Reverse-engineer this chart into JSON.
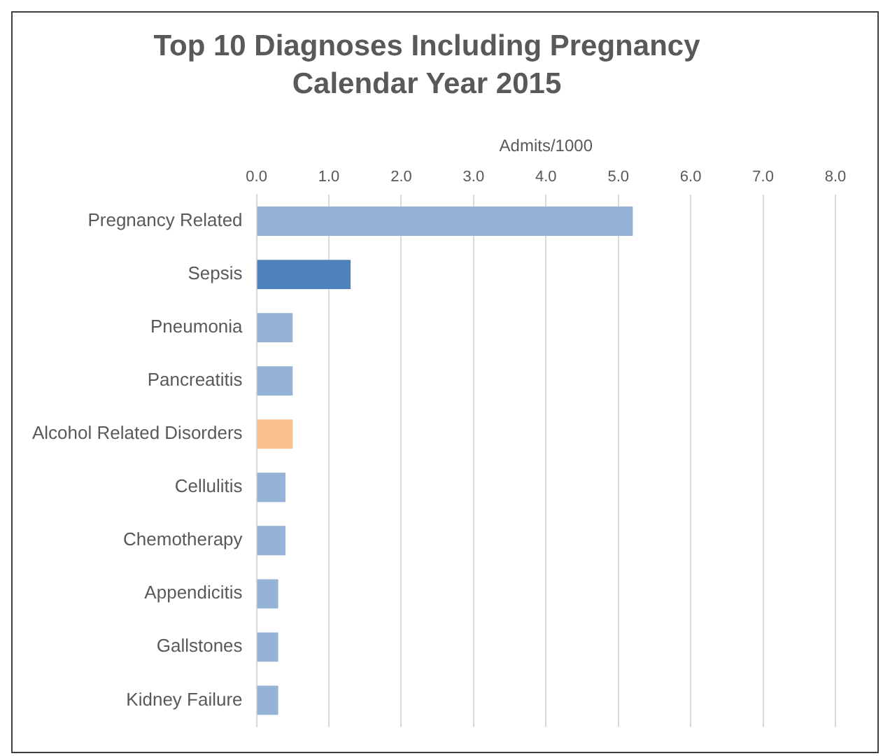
{
  "chart_data": {
    "type": "bar",
    "orientation": "horizontal",
    "title": "Top 10 Diagnoses Including Pregnancy",
    "subtitle": "Calendar Year 2015",
    "xlabel": "Admits/1000",
    "categories": [
      "Pregnancy Related",
      "Sepsis",
      "Pneumonia",
      "Pancreatitis",
      "Alcohol Related Disorders",
      "Cellulitis",
      "Chemotherapy",
      "Appendicitis",
      "Gallstones",
      "Kidney Failure"
    ],
    "values": [
      5.2,
      1.3,
      0.5,
      0.5,
      0.5,
      0.4,
      0.4,
      0.3,
      0.3,
      0.3
    ],
    "colors": [
      "#95b3d7",
      "#4f81bd",
      "#95b3d7",
      "#95b3d7",
      "#fac090",
      "#95b3d7",
      "#95b3d7",
      "#95b3d7",
      "#95b3d7",
      "#95b3d7"
    ],
    "xlim": [
      0,
      8
    ],
    "xticks": [
      {
        "value": 0,
        "label": "0.0"
      },
      {
        "value": 1,
        "label": "1.0"
      },
      {
        "value": 2,
        "label": "2.0"
      },
      {
        "value": 3,
        "label": "3.0"
      },
      {
        "value": 4,
        "label": "4.0"
      },
      {
        "value": 5,
        "label": "5.0"
      },
      {
        "value": 6,
        "label": "6.0"
      },
      {
        "value": 7,
        "label": "7.0"
      },
      {
        "value": 8,
        "label": "8.0"
      }
    ],
    "grid": "x"
  }
}
